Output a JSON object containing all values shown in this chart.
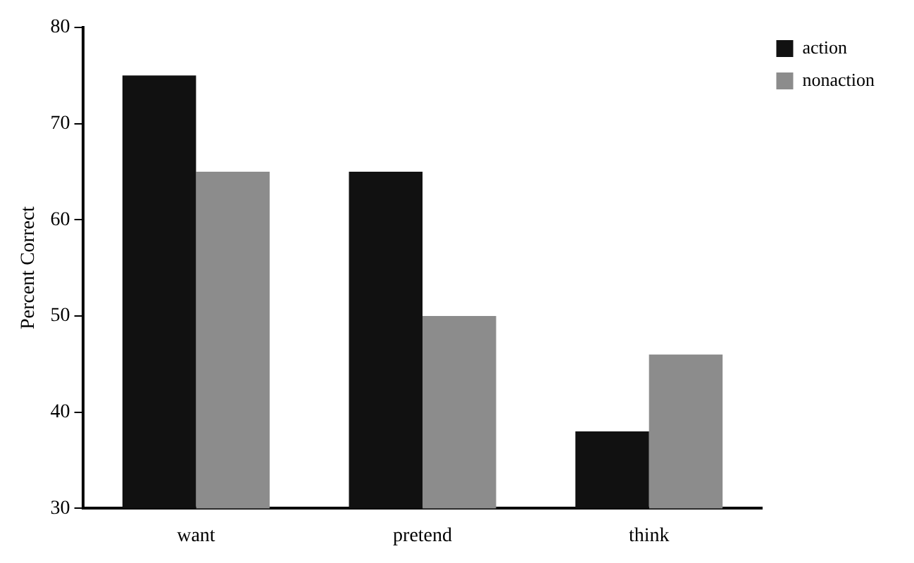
{
  "chart_data": {
    "type": "bar",
    "ylabel": "Percent Correct",
    "categories": [
      "want",
      "pretend",
      "think"
    ],
    "series": [
      {
        "name": "action",
        "color": "#111111",
        "values": [
          75,
          65,
          38
        ]
      },
      {
        "name": "nonaction",
        "color": "#8c8c8c",
        "values": [
          65,
          50,
          46
        ]
      }
    ],
    "ylim": [
      30,
      80
    ],
    "yticks": [
      30,
      40,
      50,
      60,
      70,
      80
    ],
    "grid": false,
    "legend": "top right"
  }
}
